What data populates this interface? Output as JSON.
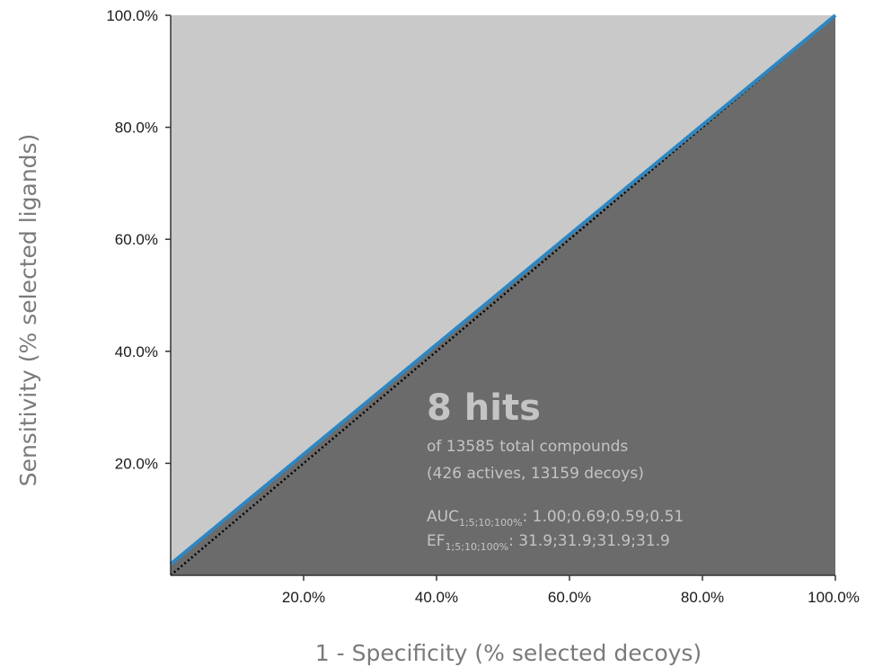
{
  "chart_data": {
    "type": "line",
    "xlabel": "1 - Specificity (% selected decoys)",
    "ylabel": "Sensitivity (% selected ligands)",
    "xlim": [
      0,
      100
    ],
    "ylim": [
      0,
      100
    ],
    "x_ticks": [
      {
        "value": 20,
        "label": "20.0%"
      },
      {
        "value": 40,
        "label": "40.0%"
      },
      {
        "value": 60,
        "label": "60.0%"
      },
      {
        "value": 80,
        "label": "80.0%"
      },
      {
        "value": 100,
        "label": "100.0%"
      }
    ],
    "y_ticks": [
      {
        "value": 20,
        "label": "20.0%"
      },
      {
        "value": 40,
        "label": "40.0%"
      },
      {
        "value": 60,
        "label": "60.0%"
      },
      {
        "value": 80,
        "label": "80.0%"
      },
      {
        "value": 100,
        "label": "100.0%"
      }
    ],
    "grid": false,
    "series": [
      {
        "kind": "roc",
        "color": "#2e86c1",
        "x": [
          0,
          100
        ],
        "y": [
          2,
          100
        ]
      },
      {
        "kind": "random-baseline",
        "color": "#000000",
        "style": "dotted",
        "x": [
          0,
          100
        ],
        "y": [
          0,
          100
        ]
      }
    ],
    "colors": {
      "above_curve": "#c9c9c9",
      "below_curve": "#6b6b6b",
      "annotation_text": "#c4c4c4"
    },
    "annotation": {
      "headline": "8 hits",
      "line1": "of 13585 total compounds",
      "line2": "(426 actives, 13159 decoys)",
      "auc_label": "AUC",
      "auc_subscript": "1;5;10;100%",
      "auc_values": ": 1.00;0.69;0.59;0.51",
      "ef_label": "EF",
      "ef_subscript": "1;5;10;100%",
      "ef_values": ": 31.9;31.9;31.9;31.9"
    }
  }
}
